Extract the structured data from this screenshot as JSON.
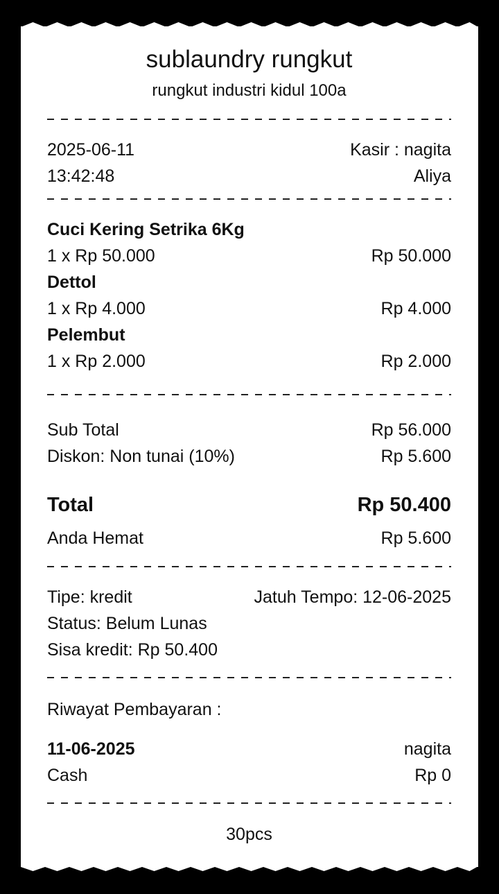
{
  "store": {
    "name": "sublaundry rungkut",
    "address": "rungkut industri kidul 100a"
  },
  "meta": {
    "date": "2025-06-11",
    "time": "13:42:48",
    "cashier": "Kasir : nagita",
    "customer": "Aliya"
  },
  "items": [
    {
      "name": "Cuci Kering Setrika 6Kg",
      "qty_price": "1 x Rp 50.000",
      "total": "Rp 50.000"
    },
    {
      "name": "Dettol",
      "qty_price": "1 x Rp 4.000",
      "total": "Rp 4.000"
    },
    {
      "name": "Pelembut",
      "qty_price": "1 x Rp 2.000",
      "total": "Rp 2.000"
    }
  ],
  "summary": {
    "subtotal_label": "Sub Total",
    "subtotal": "Rp 56.000",
    "discount_label": "Diskon: Non tunai (10%)",
    "discount": "Rp 5.600",
    "total_label": "Total",
    "total": "Rp 50.400",
    "saved_label": "Anda Hemat",
    "saved": "Rp 5.600"
  },
  "payment": {
    "type": "Tipe: kredit",
    "due": "Jatuh Tempo: 12-06-2025",
    "status": "Status: Belum Lunas",
    "remaining": "Sisa kredit: Rp 50.400"
  },
  "history": {
    "label": "Riwayat Pembayaran :",
    "entries": [
      {
        "date": "11-06-2025",
        "by": "nagita",
        "method": "Cash",
        "amount": "Rp 0"
      }
    ]
  },
  "footer": {
    "note": "30pcs"
  }
}
